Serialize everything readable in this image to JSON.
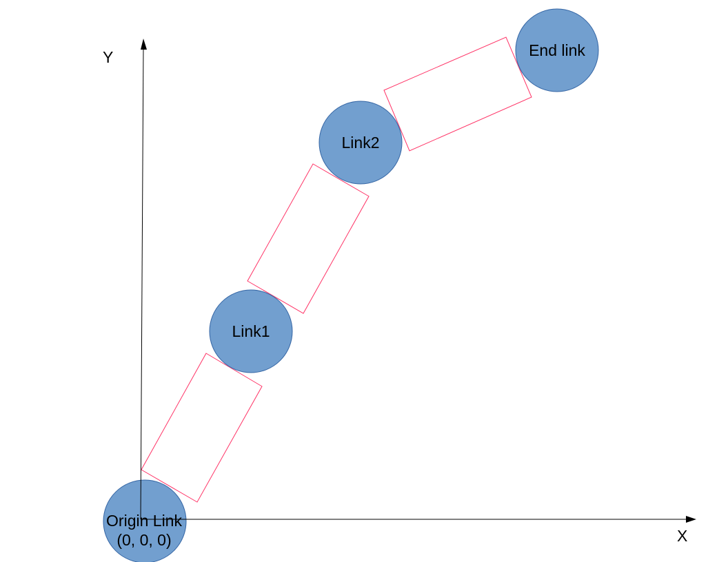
{
  "axes": {
    "x_label": "X",
    "y_label": "Y"
  },
  "nodes": {
    "origin": {
      "line1": "Origin Link",
      "line2": "(0, 0, 0)"
    },
    "link1": {
      "label": "Link1"
    },
    "link2": {
      "label": "Link2"
    },
    "end": {
      "label": "End link"
    }
  },
  "colors": {
    "joint_fill": "#729fcf",
    "joint_stroke": "#3465a4",
    "link_outline": "#ff3366",
    "axis": "#000000"
  }
}
